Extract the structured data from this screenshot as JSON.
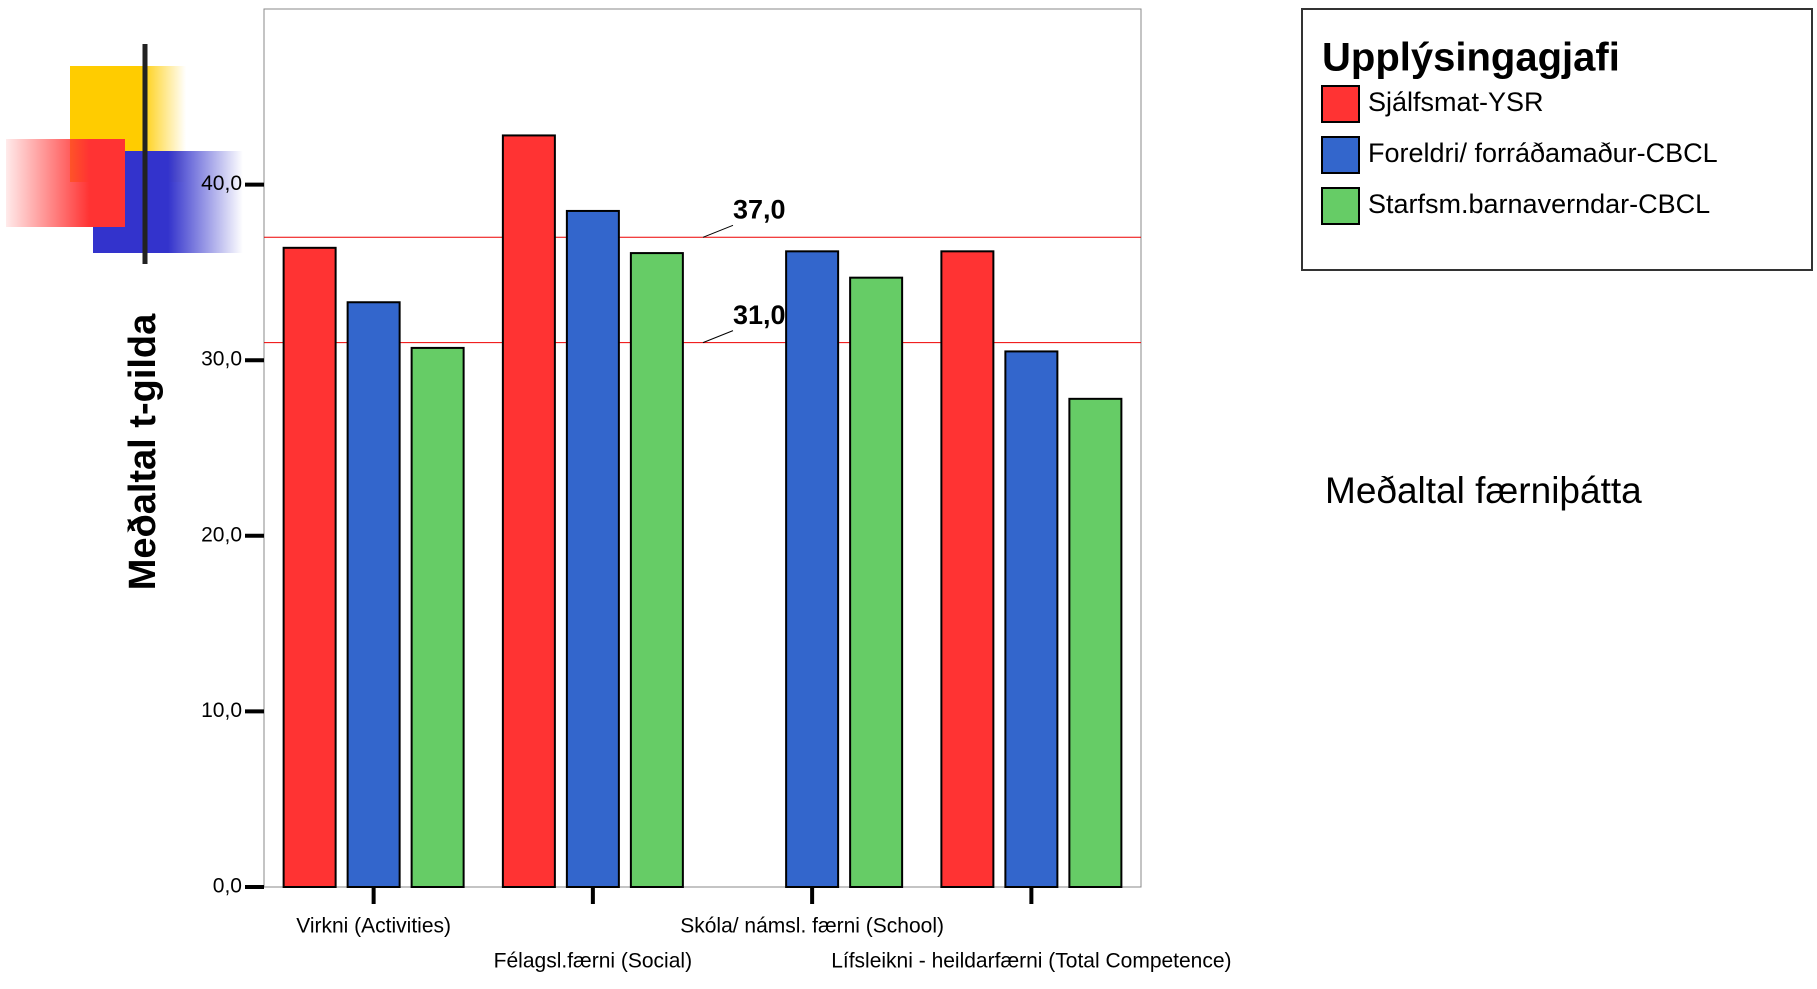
{
  "chart_data": {
    "type": "bar",
    "y_label": "Meðaltal t-gilda",
    "side_text": "Meðaltal færniþátta",
    "legend_title": "Upplýsingagjafi",
    "categories": [
      "Virkni (Activities)",
      "Félagsl.færni (Social)",
      "Skóla/ námsl. færni (School)",
      "Lífsleikni - heildarfærni (Total Competence)"
    ],
    "series": [
      {
        "name": "Sjálfsmat-YSR",
        "color": "#ff3333",
        "values": [
          36.4,
          42.8,
          null,
          36.2
        ]
      },
      {
        "name": "Foreldri/ forráðamaður-CBCL",
        "color": "#3366cc",
        "values": [
          33.3,
          38.5,
          36.2,
          30.5
        ]
      },
      {
        "name": "Starfsm.barnaverndar-CBCL",
        "color": "#66cc66",
        "values": [
          30.7,
          36.1,
          34.7,
          27.8
        ]
      }
    ],
    "reference_lines": [
      {
        "value": 37,
        "label": "37,0"
      },
      {
        "value": 31,
        "label": "31,0"
      }
    ],
    "ylim": [
      0,
      50
    ],
    "yticks": [
      {
        "value": 0,
        "label": "0,0"
      },
      {
        "value": 10,
        "label": "10,0"
      },
      {
        "value": 20,
        "label": "20,0"
      },
      {
        "value": 30,
        "label": "30,0"
      },
      {
        "value": 40,
        "label": "40,0"
      }
    ]
  }
}
